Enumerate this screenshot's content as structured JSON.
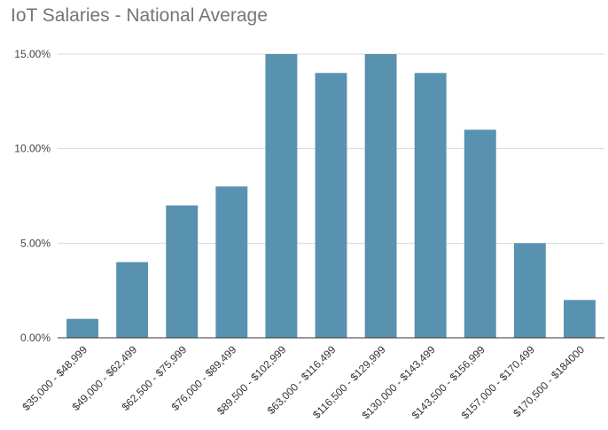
{
  "chart_data": {
    "type": "bar",
    "title": "IoT Salaries - National Average",
    "xlabel": "",
    "ylabel": "",
    "categories": [
      "$35,000 - $48,999",
      "$49,000 - $62,499",
      "$62,500 - $75,999",
      "$76,000 - $89,499",
      "$89,500 - $102,999",
      "$63,000 - $116,499",
      "$116,500 - $129,999",
      "$130,000 - $143,499",
      "$143,500 - $156,999",
      "$157,000 - $170,499",
      "$170,500 - $184000"
    ],
    "values": [
      1,
      4,
      7,
      8,
      15,
      14,
      15,
      14,
      11,
      5,
      2
    ],
    "ylim": [
      0,
      15
    ],
    "yticks": [
      {
        "value": 0,
        "label": "0.00%"
      },
      {
        "value": 5,
        "label": "5.00%"
      },
      {
        "value": 10,
        "label": "10.00%"
      },
      {
        "value": 15,
        "label": "15.00%"
      }
    ],
    "grid": true,
    "legend": "none",
    "colors": {
      "bar": "#5892B0",
      "grid": "#D9D9D9",
      "axis": "#333333",
      "title": "#757575"
    }
  }
}
